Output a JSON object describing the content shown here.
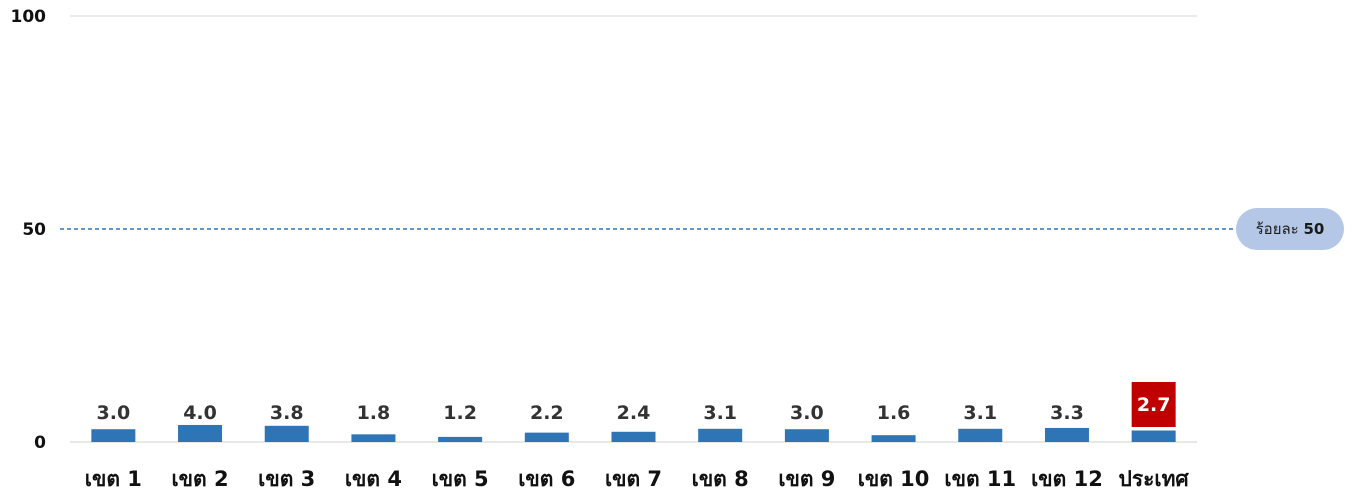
{
  "chart_data": {
    "type": "bar",
    "categories": [
      "เขต 1",
      "เขต 2",
      "เขต 3",
      "เขต 4",
      "เขต 5",
      "เขต 6",
      "เขต 7",
      "เขต 8",
      "เขต 9",
      "เขต 10",
      "เขต 11",
      "เขต 12",
      "ประเทศ"
    ],
    "values": [
      3.0,
      4.0,
      3.8,
      1.8,
      1.2,
      2.2,
      2.4,
      3.1,
      3.0,
      1.6,
      3.1,
      3.3,
      2.7
    ],
    "value_labels": [
      "3.0",
      "4.0",
      "3.8",
      "1.8",
      "1.2",
      "2.2",
      "2.4",
      "3.1",
      "3.0",
      "1.6",
      "3.1",
      "3.3",
      "2.7"
    ],
    "highlight_category": "ประเทศ",
    "ylim": [
      0,
      100
    ],
    "yticks": [
      "0",
      "50",
      "100"
    ],
    "yticks_values": [
      0,
      50,
      100
    ],
    "reference_line": {
      "value": 50,
      "label_prefix": "ร้อยละ",
      "label_value": "50"
    },
    "grid": false,
    "colors": {
      "bar": "#2e75b6",
      "highlight_label_bg": "#c00000",
      "reference_line": "#2e75b6",
      "badge": "#b4c7e7"
    }
  }
}
